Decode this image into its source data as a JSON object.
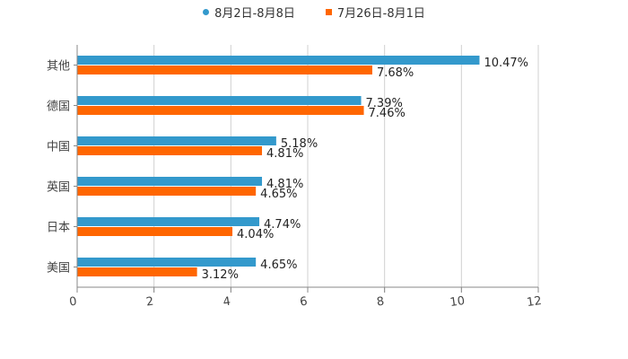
{
  "chart_data": {
    "type": "bar",
    "orientation": "horizontal",
    "categories": [
      "其他",
      "德国",
      "中国",
      "英国",
      "日本",
      "美国"
    ],
    "series": [
      {
        "name": "8月2日-8月8日",
        "color": "#3399CC",
        "values": [
          10.47,
          7.39,
          5.18,
          4.81,
          4.74,
          4.65
        ],
        "labels": [
          "10.47%",
          "7.39%",
          "5.18%",
          "4.81%",
          "4.74%",
          "4.65%"
        ]
      },
      {
        "name": "7月26日-8月1日",
        "color": "#FF6600",
        "values": [
          7.68,
          7.46,
          4.81,
          4.65,
          4.04,
          3.12
        ],
        "labels": [
          "7.68%",
          "7.46%",
          "4.81%",
          "4.65%",
          "4.04%",
          "3.12%"
        ]
      }
    ],
    "xlim": [
      0,
      12
    ],
    "xticks": [
      "0",
      "2",
      "4",
      "6",
      "8",
      "10",
      "12"
    ],
    "grid": true,
    "legend": "top-center",
    "title": "",
    "xlabel": "",
    "ylabel": ""
  }
}
